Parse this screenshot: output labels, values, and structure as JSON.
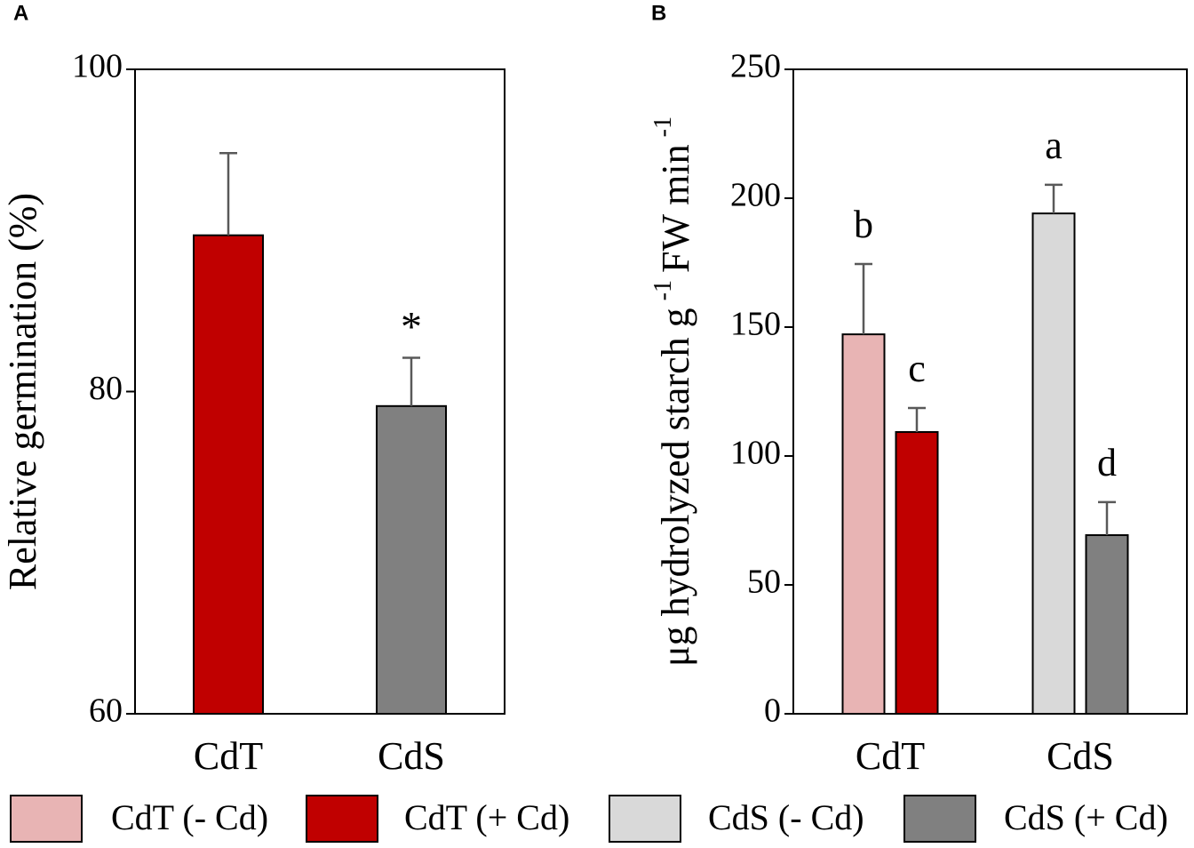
{
  "chart_data": [
    {
      "type": "bar",
      "label": "A",
      "ylabel": "Relative germination (%)",
      "categories": [
        "CdT",
        "CdS"
      ],
      "values": [
        89.7,
        79.1
      ],
      "errors": [
        5.1,
        3.0
      ],
      "colors": [
        "#c00000",
        "#808080"
      ],
      "annotations": [
        null,
        "*"
      ],
      "ylim": [
        60,
        100
      ],
      "yticks": [
        60,
        80,
        100
      ]
    },
    {
      "type": "grouped-bar",
      "label": "B",
      "ylabel_parts": [
        "μg hydrolyzed starch g",
        "-1",
        "FW min",
        "-1"
      ],
      "categories": [
        "CdT",
        "CdS"
      ],
      "series": [
        {
          "name": "CdT (- Cd)",
          "color": "#e8b4b4",
          "values": [
            147.2,
            null
          ],
          "errors": [
            27.3,
            null
          ],
          "annotations": [
            "b",
            null
          ]
        },
        {
          "name": "CdT (+ Cd)",
          "color": "#c00000",
          "values": [
            109.3,
            null
          ],
          "errors": [
            9.3,
            null
          ],
          "annotations": [
            "c",
            null
          ]
        },
        {
          "name": "CdS (- Cd)",
          "color": "#d9d9d9",
          "values": [
            null,
            194.1
          ],
          "errors": [
            null,
            11.1
          ],
          "annotations": [
            null,
            "a"
          ]
        },
        {
          "name": "CdS (+ Cd)",
          "color": "#808080",
          "values": [
            null,
            69.3
          ],
          "errors": [
            null,
            12.8
          ],
          "annotations": [
            null,
            "d"
          ]
        }
      ],
      "ylim": [
        0,
        250
      ],
      "yticks": [
        0,
        50,
        100,
        150,
        200,
        250
      ]
    }
  ]
}
